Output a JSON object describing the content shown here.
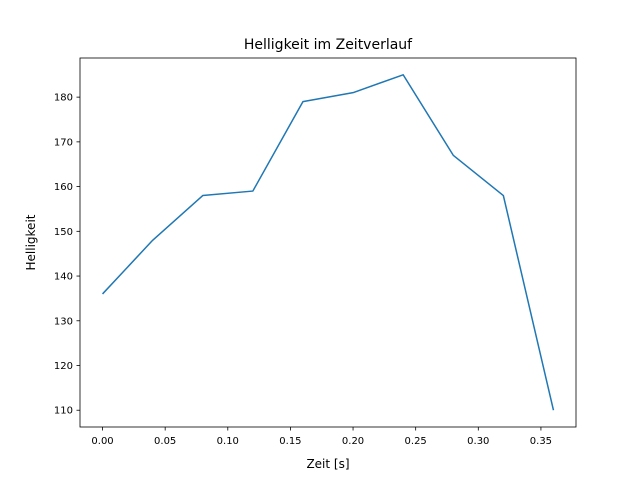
{
  "chart_data": {
    "type": "line",
    "title": "Helligkeit im Zeitverlauf",
    "xlabel": "Zeit [s]",
    "ylabel": "Helligkeit",
    "x": [
      0.0,
      0.04,
      0.08,
      0.12,
      0.16,
      0.2,
      0.24,
      0.28,
      0.32,
      0.36
    ],
    "series": [
      {
        "name": "Helligkeit",
        "color": "#1f77b4",
        "values": [
          136,
          148,
          158,
          159,
          179,
          181,
          185,
          167,
          158,
          110
        ]
      }
    ],
    "xlim": [
      -0.018,
      0.378
    ],
    "ylim": [
      106.25,
      188.75
    ],
    "xticks": [
      0.0,
      0.05,
      0.1,
      0.15,
      0.2,
      0.25,
      0.3,
      0.35
    ],
    "xtick_labels": [
      "0.00",
      "0.05",
      "0.10",
      "0.15",
      "0.20",
      "0.25",
      "0.30",
      "0.35"
    ],
    "yticks": [
      110,
      120,
      130,
      140,
      150,
      160,
      170,
      180
    ],
    "ytick_labels": [
      "110",
      "120",
      "130",
      "140",
      "150",
      "160",
      "170",
      "180"
    ],
    "grid": false,
    "legend": "none"
  }
}
